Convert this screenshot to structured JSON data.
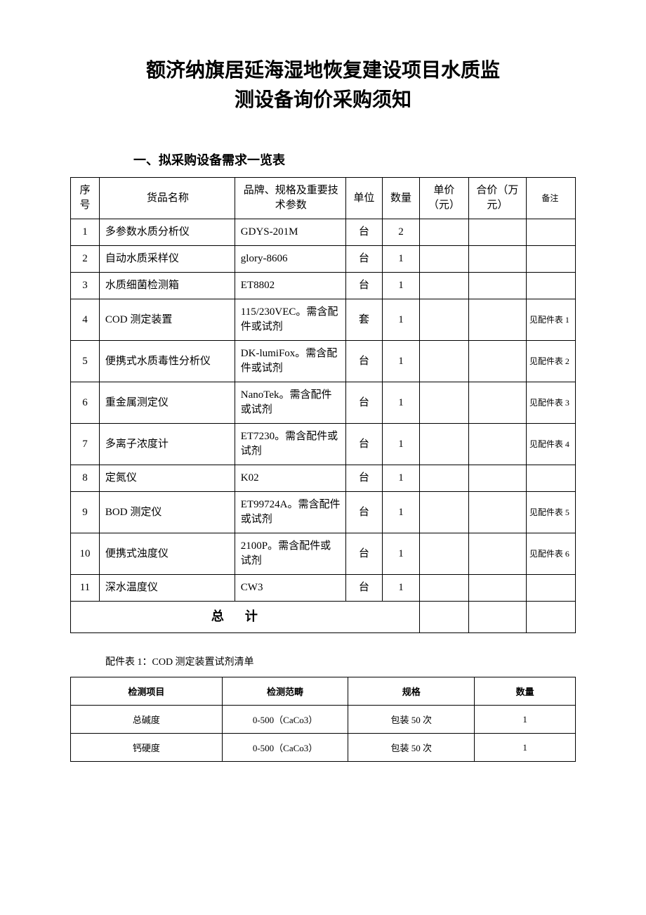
{
  "title_line1": "额济纳旗居延海湿地恢复建设项目水质监",
  "title_line2": "测设备询价采购须知",
  "section1_heading": "一、拟采购设备需求一览表",
  "main_table": {
    "headers": {
      "seq": "序号",
      "name": "货品名称",
      "spec": "品牌、规格及重要技术参数",
      "unit": "单位",
      "qty": "数量",
      "unit_price": "单价（元）",
      "total_price": "合价（万元）",
      "remark": "备注"
    },
    "rows": [
      {
        "seq": "1",
        "name": "多参数水质分析仪",
        "spec": "GDYS-201M",
        "unit": "台",
        "qty": "2",
        "unit_price": "",
        "total_price": "",
        "remark": ""
      },
      {
        "seq": "2",
        "name": "自动水质采样仪",
        "spec": "glory-8606",
        "unit": "台",
        "qty": "1",
        "unit_price": "",
        "total_price": "",
        "remark": ""
      },
      {
        "seq": "3",
        "name": "水质细菌检测箱",
        "spec": "ET8802",
        "unit": "台",
        "qty": "1",
        "unit_price": "",
        "total_price": "",
        "remark": ""
      },
      {
        "seq": "4",
        "name": "COD 测定装置",
        "spec": "115/230VEC。需含配件或试剂",
        "unit": "套",
        "qty": "1",
        "unit_price": "",
        "total_price": "",
        "remark": "见配件表 1"
      },
      {
        "seq": "5",
        "name": "便携式水质毒性分析仪",
        "spec": "DK-lumiFox。需含配件或试剂",
        "unit": "台",
        "qty": "1",
        "unit_price": "",
        "total_price": "",
        "remark": "见配件表 2"
      },
      {
        "seq": "6",
        "name": "重金属测定仪",
        "spec": "NanoTek。需含配件或试剂",
        "unit": "台",
        "qty": "1",
        "unit_price": "",
        "total_price": "",
        "remark": "见配件表 3"
      },
      {
        "seq": "7",
        "name": "多离子浓度计",
        "spec": "ET7230。需含配件或试剂",
        "unit": "台",
        "qty": "1",
        "unit_price": "",
        "total_price": "",
        "remark": "见配件表 4"
      },
      {
        "seq": "8",
        "name": "定氮仪",
        "spec": "K02",
        "unit": "台",
        "qty": "1",
        "unit_price": "",
        "total_price": "",
        "remark": ""
      },
      {
        "seq": "9",
        "name": "BOD 测定仪",
        "spec": "ET99724A。需含配件或试剂",
        "unit": "台",
        "qty": "1",
        "unit_price": "",
        "total_price": "",
        "remark": "见配件表 5"
      },
      {
        "seq": "10",
        "name": "便携式浊度仪",
        "spec": "2100P。需含配件或试剂",
        "unit": "台",
        "qty": "1",
        "unit_price": "",
        "total_price": "",
        "remark": "见配件表 6"
      },
      {
        "seq": "11",
        "name": "深水温度仪",
        "spec": "CW3",
        "unit": "台",
        "qty": "1",
        "unit_price": "",
        "total_price": "",
        "remark": ""
      }
    ],
    "total_label": "总计"
  },
  "sub1_heading": "配件表 1：COD 测定装置试剂清单",
  "sub_table1": {
    "headers": {
      "item": "检测项目",
      "range": "检测范畴",
      "spec": "规格",
      "qty": "数量"
    },
    "rows": [
      {
        "item": "总碱度",
        "range": "0-500（CaCo3）",
        "spec": "包装 50 次",
        "qty": "1"
      },
      {
        "item": "钙硬度",
        "range": "0-500（CaCo3）",
        "spec": "包装 50 次",
        "qty": "1"
      }
    ]
  }
}
